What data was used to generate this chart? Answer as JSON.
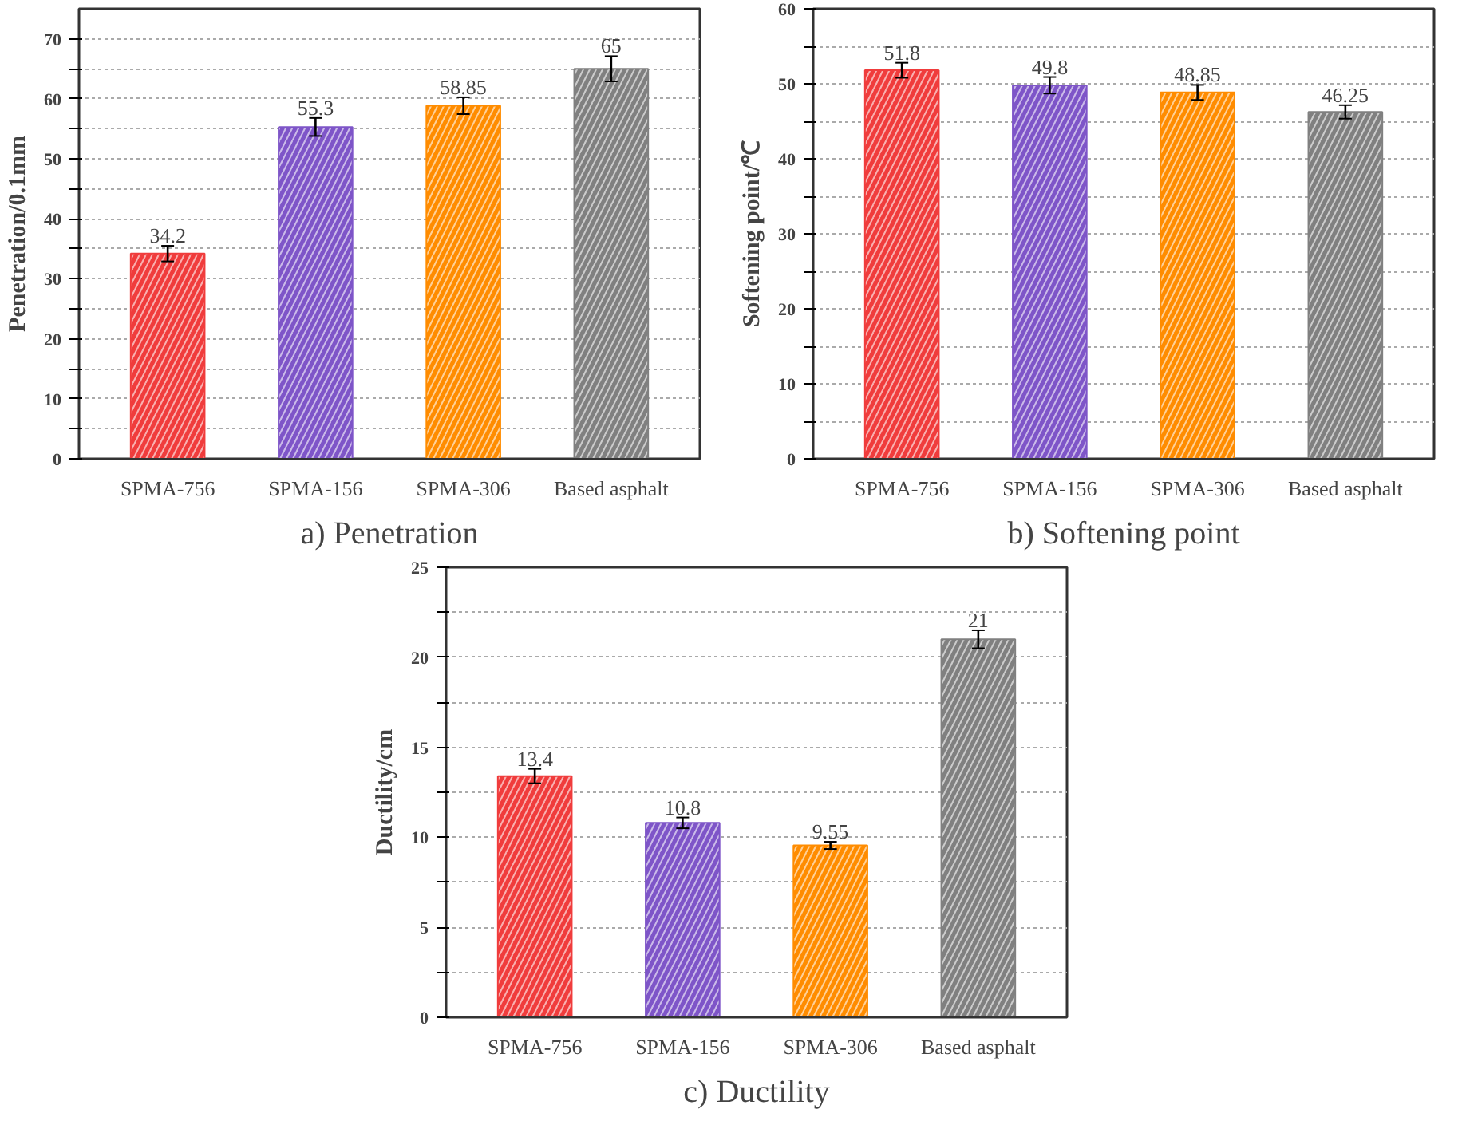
{
  "chart_data": [
    {
      "type": "bar",
      "title": "a) Penetration",
      "ylabel": "Penetration/0.1mm",
      "categories": [
        "SPMA-756",
        "SPMA-156",
        "SPMA-306",
        "Based asphalt"
      ],
      "values": [
        34.2,
        55.3,
        58.85,
        65
      ],
      "errors": [
        1.3,
        1.5,
        1.4,
        2.1
      ],
      "colors": [
        "#f03c3c",
        "#7e55c8",
        "#ff8c00",
        "#808080"
      ],
      "ylim": [
        0,
        75
      ],
      "yticks": [
        0,
        {
          "value": 5,
          "label": null
        },
        10,
        {
          "value": 15,
          "label": null
        },
        20,
        {
          "value": 25,
          "label": null
        },
        30,
        {
          "value": 35,
          "label": null
        },
        40,
        {
          "value": 45,
          "label": null
        },
        50,
        {
          "value": 55,
          "label": null
        },
        60,
        {
          "value": 65,
          "label": null
        },
        70
      ],
      "grid": "y",
      "data_labels": true
    },
    {
      "type": "bar",
      "title": "b) Softening point",
      "ylabel": "Softening point/℃",
      "categories": [
        "SPMA-756",
        "SPMA-156",
        "SPMA-306",
        "Based asphalt"
      ],
      "values": [
        51.8,
        49.8,
        48.85,
        46.25
      ],
      "errors": [
        1.0,
        1.1,
        1.0,
        0.9
      ],
      "colors": [
        "#f03c3c",
        "#7e55c8",
        "#ff8c00",
        "#808080"
      ],
      "ylim": [
        0,
        60
      ],
      "yticks": [
        0,
        {
          "value": 5,
          "label": null
        },
        10,
        {
          "value": 15,
          "label": null
        },
        20,
        {
          "value": 25,
          "label": null
        },
        30,
        {
          "value": 35,
          "label": null
        },
        40,
        {
          "value": 45,
          "label": null
        },
        50,
        {
          "value": 55,
          "label": null
        },
        60
      ],
      "grid": "y",
      "data_labels": true
    },
    {
      "type": "bar",
      "title": "c) Ductility",
      "ylabel": "Ductility/cm",
      "categories": [
        "SPMA-756",
        "SPMA-156",
        "SPMA-306",
        "Based asphalt"
      ],
      "values": [
        13.4,
        10.8,
        9.55,
        21
      ],
      "errors": [
        0.4,
        0.3,
        0.2,
        0.5
      ],
      "colors": [
        "#f03c3c",
        "#7e55c8",
        "#ff8c00",
        "#808080"
      ],
      "ylim": [
        0,
        25
      ],
      "yticks": [
        0,
        {
          "value": 2.5,
          "label": null
        },
        5,
        {
          "value": 7.5,
          "label": null
        },
        10,
        {
          "value": 12.5,
          "label": null
        },
        15,
        {
          "value": 17.5,
          "label": null
        },
        20,
        {
          "value": 22.5,
          "label": null
        },
        25
      ],
      "grid": "y",
      "data_labels": true
    }
  ]
}
